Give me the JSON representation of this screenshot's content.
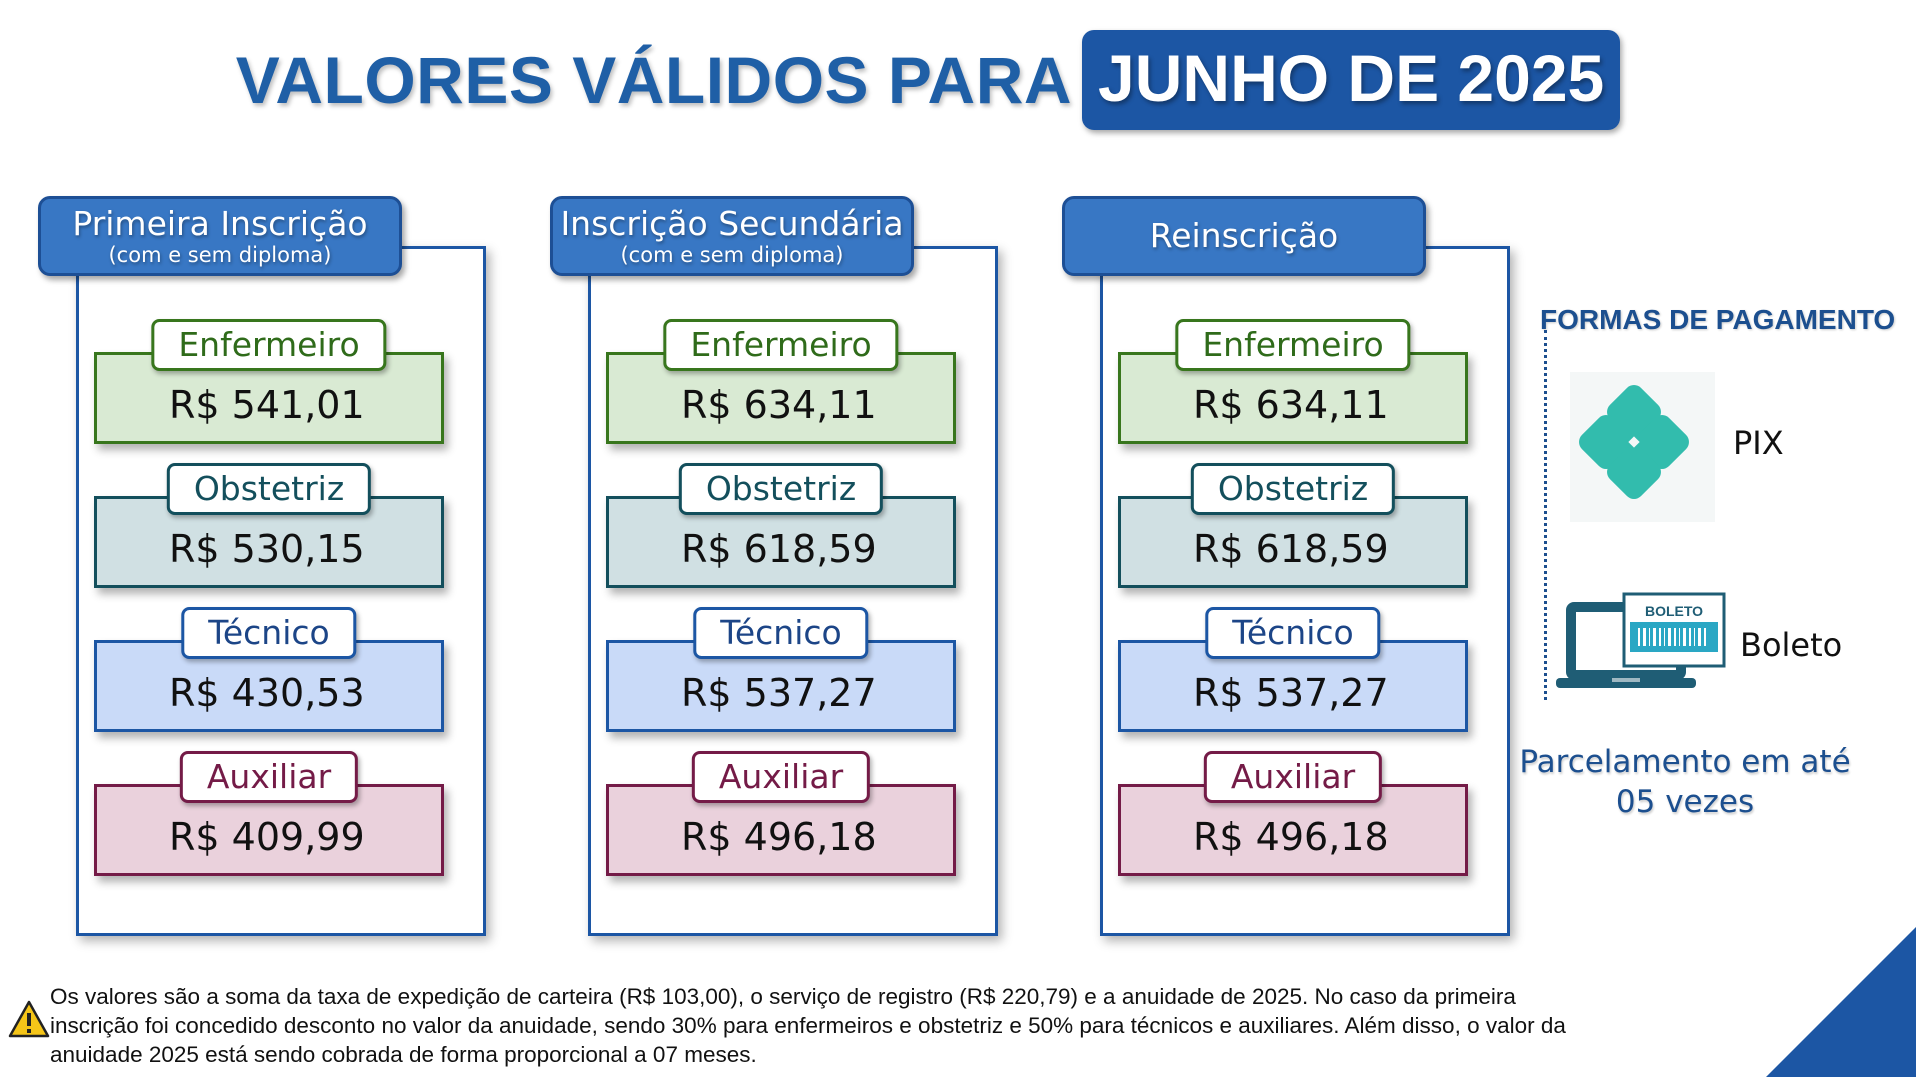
{
  "title": {
    "main": "VALORES VÁLIDOS PARA",
    "highlight": "JUNHO DE 2025"
  },
  "columns": [
    {
      "header": "Primeira Inscrição",
      "subheader": "(com e sem diploma)",
      "prices": [
        {
          "label": "Enfermeiro",
          "value": "R$ 541,01"
        },
        {
          "label": "Obstetriz",
          "value": "R$ 530,15"
        },
        {
          "label": "Técnico",
          "value": "R$ 430,53"
        },
        {
          "label": "Auxiliar",
          "value": "R$ 409,99"
        }
      ]
    },
    {
      "header": "Inscrição Secundária",
      "subheader": "(com e sem diploma)",
      "prices": [
        {
          "label": "Enfermeiro",
          "value": "R$ 634,11"
        },
        {
          "label": "Obstetriz",
          "value": "R$ 618,59"
        },
        {
          "label": "Técnico",
          "value": "R$ 537,27"
        },
        {
          "label": "Auxiliar",
          "value": "R$ 496,18"
        }
      ]
    },
    {
      "header": "Reinscrição",
      "subheader": "",
      "prices": [
        {
          "label": "Enfermeiro",
          "value": "R$ 634,11"
        },
        {
          "label": "Obstetriz",
          "value": "R$ 618,59"
        },
        {
          "label": "Técnico",
          "value": "R$ 537,27"
        },
        {
          "label": "Auxiliar",
          "value": "R$ 496,18"
        }
      ]
    }
  ],
  "payment": {
    "title": "FORMAS DE PAGAMENTO",
    "methods": [
      {
        "label": "PIX",
        "icon": "pix-icon"
      },
      {
        "label": "Boleto",
        "icon": "boleto-icon",
        "icon_text": "BOLETO"
      }
    ],
    "installments": "Parcelamento em até 05 vezes"
  },
  "note": "Os valores são a soma da taxa de expedição de carteira (R$ 103,00), o serviço de registro (R$ 220,79) e a anuidade de 2025. No caso da primeira inscrição foi concedido desconto no valor da anuidade, sendo 30% para enfermeiros e obstetriz e 50% para técnicos e auxiliares. Além disso, o valor da anuidade 2025 está sendo cobrada de forma proporcional a 07 meses.",
  "colors": {
    "brand_blue": "#1c56a4",
    "enfermeiro": "#d9ead3",
    "obstetriz": "#d0e0e3",
    "tecnico": "#c9daf8",
    "auxiliar": "#ead1dc",
    "pix": "#32bcad"
  }
}
